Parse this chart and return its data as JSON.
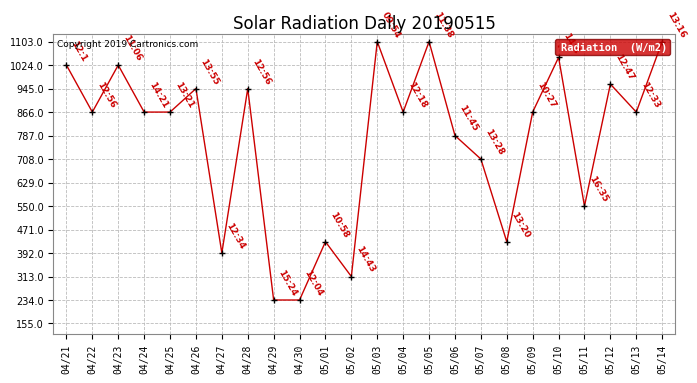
{
  "title": "Solar Radiation Daily 20190515",
  "copyright": "Copyright 2019 Cartronics.com",
  "legend_label": "Radiation  (W/m2)",
  "line_color": "#cc0000",
  "grid_color": "#bbbbbb",
  "ylabel_values": [
    155.0,
    234.0,
    313.0,
    392.0,
    471.0,
    550.0,
    629.0,
    708.0,
    787.0,
    866.0,
    945.0,
    1024.0,
    1103.0
  ],
  "dates": [
    "04/21",
    "04/22",
    "04/23",
    "04/24",
    "04/25",
    "04/26",
    "04/27",
    "04/28",
    "04/29",
    "04/30",
    "05/01",
    "05/02",
    "05/03",
    "05/04",
    "05/05",
    "05/06",
    "05/07",
    "05/08",
    "05/09",
    "05/10",
    "05/11",
    "05/12",
    "05/13",
    "05/14"
  ],
  "values": [
    1024,
    866,
    1024,
    866,
    866,
    945,
    392,
    945,
    234,
    234,
    430,
    313,
    1103,
    866,
    1103,
    787,
    708,
    430,
    866,
    1050,
    550,
    960,
    866,
    1103
  ],
  "point_labels": [
    "12:1",
    "12:56",
    "11:06",
    "14:21",
    "13:21",
    "13:55",
    "12:34",
    "12:56",
    "15:24",
    "12:04",
    "10:58",
    "14:43",
    "09:54",
    "12:18",
    "11:38",
    "11:45",
    "13:28",
    "13:20",
    "10:27",
    "14:4",
    "16:35",
    "12:47",
    "12:33",
    "13:16"
  ],
  "title_fontsize": 12,
  "tick_fontsize": 7,
  "label_fontsize": 7,
  "ylim_min": 120,
  "ylim_max": 1130
}
